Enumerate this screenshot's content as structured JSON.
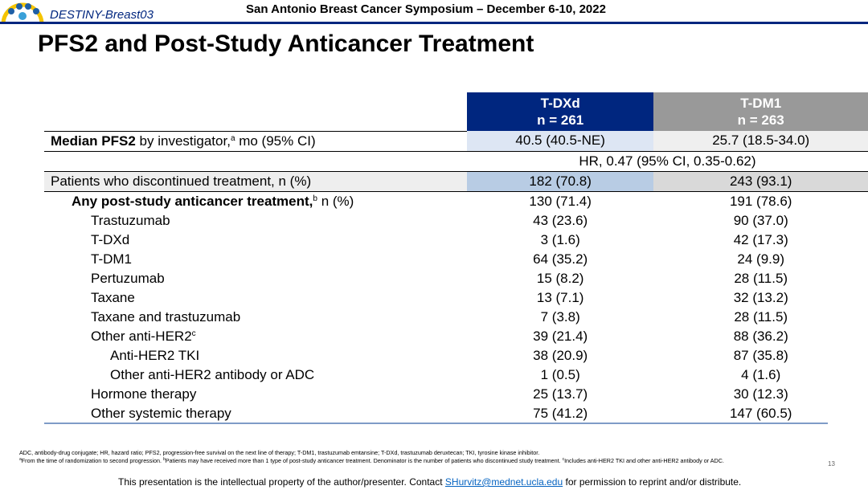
{
  "header": {
    "logo_text": "DESTINY-Breast03",
    "conference": "San Antonio Breast Cancer Symposium – December 6-10, 2022",
    "title": "PFS2 and Post-Study Anticancer Treatment"
  },
  "table": {
    "columns": [
      {
        "name": "T-DXd",
        "n": "n = 261"
      },
      {
        "name": "T-DM1",
        "n": "n = 263"
      }
    ],
    "rows": [
      {
        "bold": "Median PFS2",
        "text": " by investigator,",
        "sup": "a",
        "after": " mo (95% CI)",
        "cells": [
          "40.5 (40.5-NE)",
          "25.7 (18.5-34.0)"
        ]
      },
      {
        "span": "HR, 0.47 (95% CI, 0.35-0.62)"
      },
      {
        "text": "Patients who discontinued treatment, n (%)",
        "cells": [
          "182 (70.8)",
          "243 (93.1)"
        ]
      },
      {
        "bold": "Any post-study anticancer treatment,",
        "sup": "b",
        "after": " n (%)",
        "cells": [
          "130 (71.4)",
          "191 (78.6)"
        ]
      },
      {
        "text": "Trastuzumab",
        "cells": [
          "43 (23.6)",
          "90 (37.0)"
        ]
      },
      {
        "text": "T-DXd",
        "cells": [
          "3 (1.6)",
          "42 (17.3)"
        ]
      },
      {
        "text": "T-DM1",
        "cells": [
          "64 (35.2)",
          "24 (9.9)"
        ]
      },
      {
        "text": "Pertuzumab",
        "cells": [
          "15 (8.2)",
          "28 (11.5)"
        ]
      },
      {
        "text": "Taxane",
        "cells": [
          "13 (7.1)",
          "32 (13.2)"
        ]
      },
      {
        "text": "Taxane and trastuzumab",
        "cells": [
          "7 (3.8)",
          "28 (11.5)"
        ]
      },
      {
        "text": "Other anti-HER2",
        "sup": "c",
        "cells": [
          "39 (21.4)",
          "88 (36.2)"
        ]
      },
      {
        "text": "Anti-HER2 TKI",
        "cells": [
          "38 (20.9)",
          "87 (35.8)"
        ]
      },
      {
        "text": "Other anti-HER2 antibody or ADC",
        "cells": [
          "1 (0.5)",
          "4 (1.6)"
        ]
      },
      {
        "text": "Hormone therapy",
        "cells": [
          "25 (13.7)",
          "30 (12.3)"
        ]
      },
      {
        "text": "Other systemic therapy",
        "cells": [
          "75 (41.2)",
          "147 (60.5)"
        ]
      }
    ]
  },
  "footnotes": {
    "abbreviations": "ADC, antibody-drug conjugate; HR, hazard ratio; PFS2, progression-free survival on the next line of therapy; T-DM1, trastuzumab emtansine; T-DXd, trastuzumab deruxtecan; TKI, tyrosine kinase inhibitor.",
    "notes": [
      {
        "sup": "a",
        "text": "From the time of randomization to second progression. "
      },
      {
        "sup": "b",
        "text": "Patients may have received more than 1 type of post-study anticancer treatment. Denominator is the number of patients who discontinued study treatment. "
      },
      {
        "sup": "c",
        "text": "Includes anti-HER2 TKI and other anti-HER2 antibody or ADC."
      }
    ]
  },
  "page_number": "13",
  "footer": {
    "before": "This presentation is the intellectual property of the author/presenter. Contact ",
    "email": "SHurvitz@mednet.ucla.edu",
    "after": " for permission to reprint and/or distribute."
  }
}
